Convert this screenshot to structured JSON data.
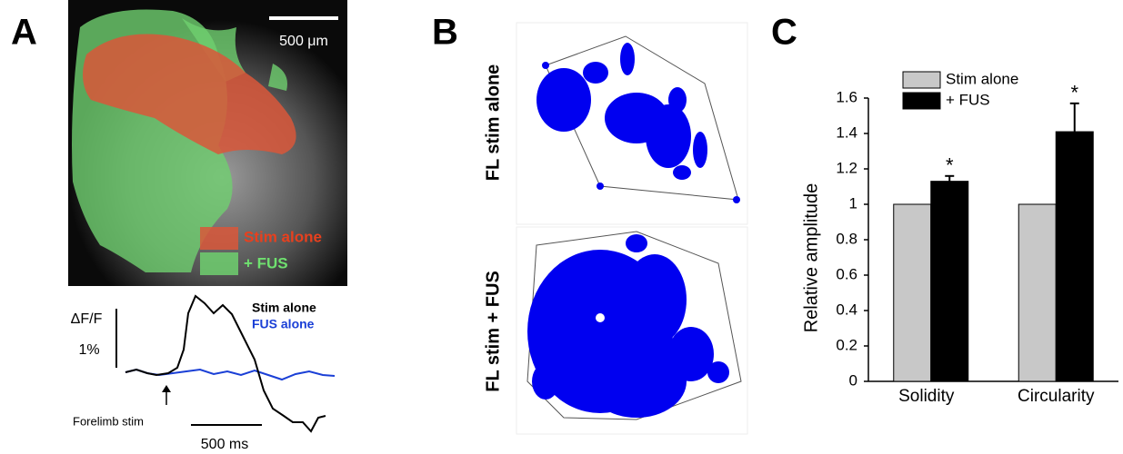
{
  "figure": {
    "panel_a": {
      "label": "A",
      "scale_bar": "500 μm",
      "legend": [
        "Stim alone",
        "+ FUS"
      ],
      "trace_label": "ΔF/F",
      "trace_scale": "1%",
      "trace_legend": [
        "Stim alone",
        "FUS alone"
      ],
      "stim_label": "Forelimb stim",
      "time_scale": "500 ms"
    },
    "panel_b": {
      "label": "B",
      "rows": [
        "FL stim alone",
        "FL stim + FUS"
      ]
    },
    "panel_c": {
      "label": "C"
    }
  },
  "chart_data": {
    "type": "bar",
    "ylabel": "Relative amplitude",
    "categories": [
      "Solidity",
      "Circularity"
    ],
    "series": [
      {
        "name": "Stim alone",
        "color": "#c8c8c8",
        "values": [
          1,
          1
        ]
      },
      {
        "name": "+ FUS",
        "color": "#000000",
        "values": [
          1.13,
          1.41
        ],
        "errors": [
          0.03,
          0.16
        ],
        "significance": [
          "*",
          "*"
        ]
      }
    ],
    "ylim": [
      0,
      1.6
    ],
    "yticks": [
      0,
      0.2,
      0.4,
      0.6,
      0.8,
      1,
      1.2,
      1.4,
      1.6
    ],
    "legend": "upper left"
  }
}
